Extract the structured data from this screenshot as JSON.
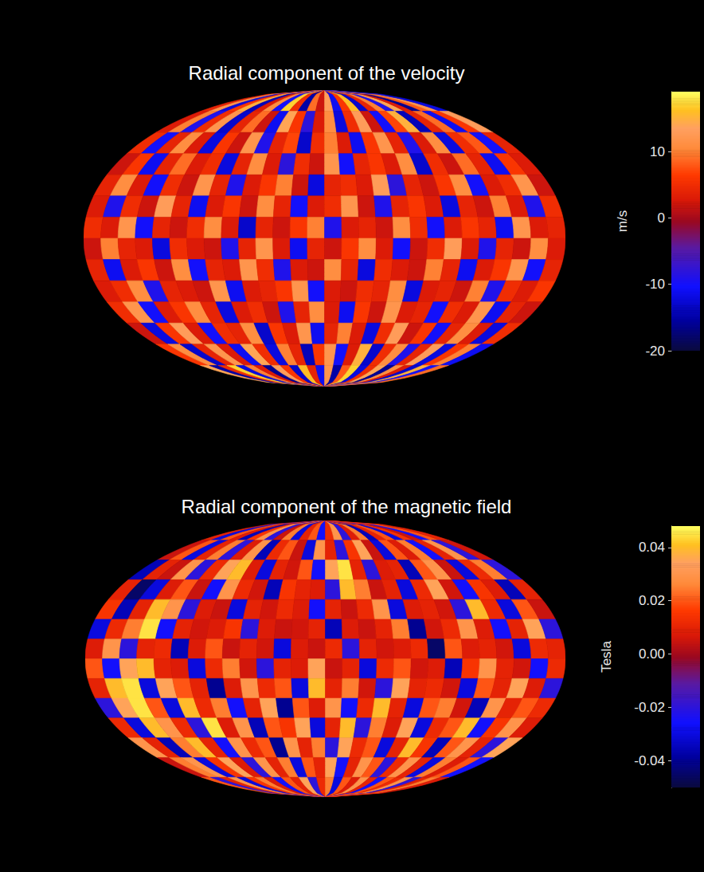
{
  "chart_data": [
    {
      "type": "heatmap",
      "title": "Radial component of the velocity",
      "xlim": [
        -180,
        180
      ],
      "ylim": [
        -90,
        90
      ],
      "tick_labels": false,
      "cells": [
        [
          4,
          12,
          -12,
          6,
          15,
          -14,
          3,
          11,
          -10,
          17,
          5,
          -15,
          9,
          2,
          13,
          -11,
          6,
          16,
          -13,
          4,
          10,
          -9,
          14,
          3,
          -16,
          8,
          12,
          -12
        ],
        [
          3,
          10,
          -9,
          5,
          12,
          -13,
          4,
          9,
          2,
          -11,
          14,
          6,
          -8,
          3,
          11,
          -12,
          5,
          13,
          2,
          -10,
          7,
          15,
          -14,
          4,
          9,
          -11,
          6,
          13
        ],
        [
          5,
          -10,
          4,
          11,
          3,
          -12,
          6,
          2,
          12,
          -9,
          4,
          7,
          -13,
          5,
          10,
          3,
          -11,
          6,
          12,
          4,
          -9,
          3,
          11,
          -12,
          5,
          8,
          -10,
          4
        ],
        [
          2,
          6,
          -11,
          4,
          9,
          3,
          5,
          -12,
          4,
          11,
          3,
          -8,
          5,
          2,
          12,
          -10,
          4,
          6,
          3,
          11,
          -13,
          5,
          2,
          9,
          4,
          -11,
          6,
          3
        ],
        [
          4,
          11,
          3,
          -10,
          5,
          2,
          12,
          4,
          -9,
          3,
          6,
          10,
          2,
          -12,
          4,
          5,
          3,
          13,
          -8,
          4,
          2,
          6,
          11,
          -10,
          3,
          5,
          12,
          2
        ],
        [
          3,
          -9,
          5,
          2,
          13,
          4,
          -11,
          3,
          6,
          2,
          11,
          4,
          -10,
          3,
          5,
          12,
          2,
          -9,
          4,
          6,
          3,
          -12,
          4,
          2,
          10,
          3,
          -9,
          5
        ],
        [
          5,
          3,
          12,
          -10,
          4,
          2,
          5,
          11,
          3,
          -13,
          4,
          2,
          6,
          10,
          -9,
          3,
          4,
          2,
          11,
          5,
          -10,
          3,
          6,
          4,
          -11,
          12,
          3,
          4
        ],
        [
          2,
          10,
          4,
          3,
          -12,
          5,
          3,
          2,
          -9,
          4,
          12,
          3,
          -11,
          4,
          2,
          6,
          11,
          3,
          -10,
          2,
          5,
          13,
          3,
          -9,
          4,
          2,
          11,
          3
        ],
        [
          4,
          -11,
          3,
          6,
          2,
          11,
          -10,
          4,
          3,
          12,
          5,
          -9,
          3,
          2,
          11,
          4,
          -12,
          5,
          3,
          2,
          10,
          4,
          -11,
          3,
          6,
          12,
          -10,
          4
        ],
        [
          3,
          5,
          11,
          -9,
          4,
          3,
          2,
          12,
          -11,
          3,
          4,
          6,
          12,
          -10,
          3,
          2,
          5,
          4,
          11,
          -12,
          3,
          4,
          2,
          10,
          -9,
          5,
          3,
          6
        ],
        [
          5,
          12,
          -10,
          3,
          6,
          11,
          4,
          -12,
          3,
          5,
          2,
          -9,
          4,
          11,
          3,
          -11,
          6,
          2,
          12,
          3,
          4,
          -10,
          5,
          3,
          12,
          -11,
          4,
          2
        ],
        [
          2,
          -12,
          6,
          13,
          3,
          -10,
          5,
          4,
          11,
          -13,
          6,
          3,
          12,
          -11,
          4,
          10,
          3,
          -12,
          5,
          13,
          2,
          6,
          -10,
          4,
          11,
          3,
          -12,
          5
        ],
        [
          6,
          11,
          -13,
          4,
          12,
          3,
          -11,
          14,
          5,
          -12,
          10,
          4,
          -14,
          6,
          12,
          -10,
          3,
          15,
          -13,
          5,
          11,
          -9,
          4,
          13,
          -12,
          6,
          10,
          -11
        ],
        [
          14,
          -15,
          5,
          17,
          -12,
          10,
          3,
          -16,
          13,
          6,
          -13,
          16,
          4,
          -11,
          12,
          -15,
          8,
          17,
          -12,
          5,
          14,
          -16,
          11,
          3,
          -13,
          15,
          -10,
          9
        ]
      ],
      "colorbar": {
        "label": "m/s",
        "range": [
          -20,
          19
        ],
        "ticks": [
          -20,
          -10,
          0,
          10
        ]
      }
    },
    {
      "type": "heatmap",
      "title": "Radial component of the magnetic field",
      "xlim": [
        -180,
        180
      ],
      "ylim": [
        -90,
        90
      ],
      "tick_labels": false,
      "cells": [
        [
          0.01,
          -0.03,
          0.02,
          0.008,
          -0.035,
          0.015,
          0.03,
          -0.02,
          0.005,
          0.025,
          -0.03,
          0.01,
          0.02,
          -0.025,
          0.012,
          0.03,
          -0.02,
          0.008,
          0.025,
          -0.035,
          0.01,
          0.02,
          -0.03,
          0.015,
          0.005,
          -0.025,
          0.02,
          0.01
        ],
        [
          0.005,
          0.02,
          -0.03,
          0.01,
          0.025,
          -0.02,
          0.008,
          0.03,
          -0.035,
          0.012,
          0.02,
          0.005,
          -0.03,
          0.03,
          0.01,
          -0.02,
          0.015,
          0.035,
          0.005,
          -0.03,
          0.02,
          0.008,
          0.025,
          -0.025,
          0.01,
          0.03,
          -0.02,
          0.006
        ],
        [
          -0.035,
          0.01,
          0.005,
          0.03,
          -0.02,
          0.012,
          0.035,
          0.04,
          0.008,
          -0.03,
          0.01,
          0.006,
          0.02,
          -0.025,
          0.035,
          0.045,
          0.01,
          -0.02,
          0.008,
          0.01,
          -0.035,
          0.02,
          0.03,
          0.005,
          -0.03,
          0.012,
          0.025,
          -0.02
        ],
        [
          0.01,
          -0.045,
          -0.03,
          0.008,
          0.02,
          0.005,
          -0.025,
          0.03,
          0.012,
          0.006,
          -0.035,
          0.015,
          0.01,
          0.008,
          -0.02,
          0.04,
          0.025,
          0.005,
          0.01,
          -0.03,
          0.012,
          0.035,
          0.006,
          -0.025,
          0.015,
          0.008,
          -0.035,
          0.01
        ],
        [
          0.015,
          -0.035,
          0.01,
          0.04,
          0.03,
          -0.02,
          0.008,
          0.005,
          -0.03,
          0.01,
          0.006,
          0.012,
          0.008,
          -0.025,
          0.01,
          0.005,
          0.012,
          0.03,
          -0.03,
          0.008,
          0.01,
          0.006,
          -0.02,
          0.04,
          0.012,
          -0.03,
          0.02,
          0.005
        ],
        [
          -0.03,
          0.012,
          0.025,
          0.045,
          -0.025,
          0.01,
          0.006,
          0.008,
          0.015,
          -0.02,
          0.008,
          0.005,
          0.006,
          0.01,
          -0.035,
          0.008,
          0.005,
          0.01,
          0.025,
          -0.04,
          0.006,
          0.012,
          0.03,
          0.008,
          -0.025,
          0.01,
          0.035,
          -0.02
        ],
        [
          0.008,
          0.03,
          -0.02,
          0.01,
          0.012,
          -0.035,
          0.008,
          0.02,
          0.005,
          0.01,
          0.006,
          -0.03,
          0.008,
          0.005,
          0.012,
          -0.02,
          0.01,
          0.006,
          0.008,
          0.012,
          -0.045,
          0.02,
          0.008,
          0.01,
          0.006,
          -0.03,
          0.012,
          0.01
        ],
        [
          0.02,
          -0.025,
          0.035,
          0.04,
          0.01,
          0.008,
          -0.03,
          0.012,
          0.025,
          0.006,
          -0.02,
          0.01,
          0.008,
          0.035,
          0.005,
          0.01,
          -0.03,
          0.012,
          0.02,
          0.006,
          0.008,
          -0.035,
          0.015,
          0.03,
          0.01,
          0.006,
          -0.025,
          0.012
        ],
        [
          0.01,
          0.04,
          0.045,
          -0.03,
          0.035,
          0.02,
          0.01,
          -0.04,
          0.008,
          0.03,
          0.012,
          0.02,
          -0.03,
          0.04,
          0.01,
          0.025,
          0.006,
          -0.02,
          0.035,
          0.01,
          0.012,
          0.006,
          -0.03,
          0.02,
          0.01,
          0.035,
          0.008,
          -0.02
        ],
        [
          -0.02,
          0.035,
          0.045,
          0.02,
          -0.03,
          0.04,
          0.012,
          0.025,
          -0.025,
          0.01,
          0.035,
          -0.04,
          0.02,
          0.008,
          0.03,
          -0.025,
          0.012,
          0.04,
          0.01,
          -0.03,
          0.02,
          0.025,
          0.006,
          -0.035,
          0.03,
          0.01,
          0.02,
          0.012
        ],
        [
          0.012,
          -0.03,
          0.04,
          0.03,
          0.012,
          -0.02,
          0.045,
          0.008,
          0.03,
          -0.035,
          0.02,
          0.015,
          0.035,
          -0.03,
          0.01,
          0.04,
          -0.02,
          0.025,
          0.008,
          0.035,
          -0.03,
          0.012,
          0.02,
          0.04,
          -0.025,
          0.015,
          0.03,
          0.008
        ],
        [
          0.03,
          0.01,
          -0.035,
          0.025,
          0.04,
          0.01,
          -0.025,
          0.03,
          0.012,
          0.02,
          -0.04,
          0.03,
          0.01,
          0.025,
          -0.02,
          0.035,
          0.012,
          0.02,
          -0.03,
          0.01,
          0.04,
          0.015,
          -0.035,
          0.02,
          0.03,
          0.01,
          -0.02,
          0.035
        ],
        [
          0.005,
          0.025,
          0.03,
          -0.03,
          0.015,
          0.035,
          0.008,
          -0.02,
          0.03,
          0.01,
          0.025,
          -0.03,
          0.02,
          0.01,
          0.035,
          -0.025,
          0.01,
          0.03,
          0.02,
          -0.02,
          0.012,
          0.03,
          0.01,
          -0.03,
          0.025,
          0.008,
          0.02,
          -0.025
        ],
        [
          0.02,
          -0.02,
          0.01,
          0.03,
          -0.03,
          0.015,
          0.025,
          0.008,
          -0.025,
          0.02,
          0.01,
          0.035,
          -0.02,
          0.012,
          0.025,
          -0.03,
          0.02,
          0.008,
          0.03,
          0.01,
          -0.025,
          0.02,
          0.012,
          0.03,
          -0.02,
          0.01,
          0.025,
          0.008
        ]
      ],
      "colorbar": {
        "label": "Tesla",
        "range": [
          -0.05,
          0.048
        ],
        "ticks": [
          -0.04,
          -0.02,
          {
            "value": 0,
            "label": "0.00"
          },
          0.02,
          0.04
        ]
      }
    }
  ]
}
